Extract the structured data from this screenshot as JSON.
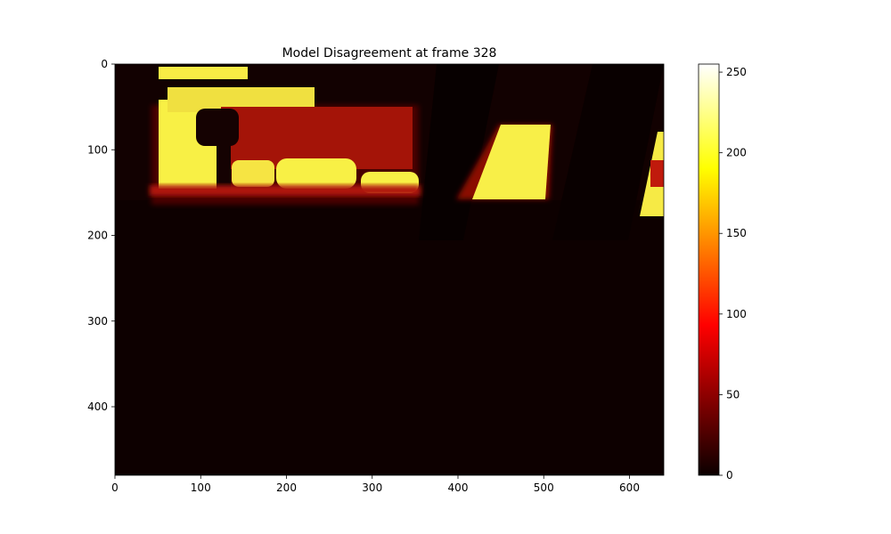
{
  "chart_data": {
    "type": "heatmap",
    "title": "Model Disagreement at frame 328",
    "xlabel": "",
    "ylabel": "",
    "xlim": [
      0,
      640
    ],
    "ylim": [
      480,
      0
    ],
    "x_ticks": [
      0,
      100,
      200,
      300,
      400,
      500,
      600
    ],
    "y_ticks": [
      0,
      100,
      200,
      300,
      400
    ],
    "colormap": "hot",
    "colorbar": {
      "min": 0,
      "max": 255,
      "ticks": [
        0,
        50,
        100,
        150,
        200,
        250
      ]
    },
    "grid": false,
    "hot_regions": [
      {
        "name": "upper-left-window",
        "x": [
          50,
          355
        ],
        "y": [
          55,
          150
        ],
        "value": 225
      },
      {
        "name": "center-window",
        "x": [
          415,
          500
        ],
        "y": [
          70,
          165
        ],
        "value": 225
      },
      {
        "name": "right-edge-window",
        "x": [
          615,
          640
        ],
        "y": [
          80,
          180
        ],
        "value": 215
      }
    ]
  },
  "colors": {
    "cmap_stops": [
      "#0b0000",
      "#ff0000",
      "#ffff00",
      "#ffffff"
    ],
    "background_dark": "#120101"
  }
}
